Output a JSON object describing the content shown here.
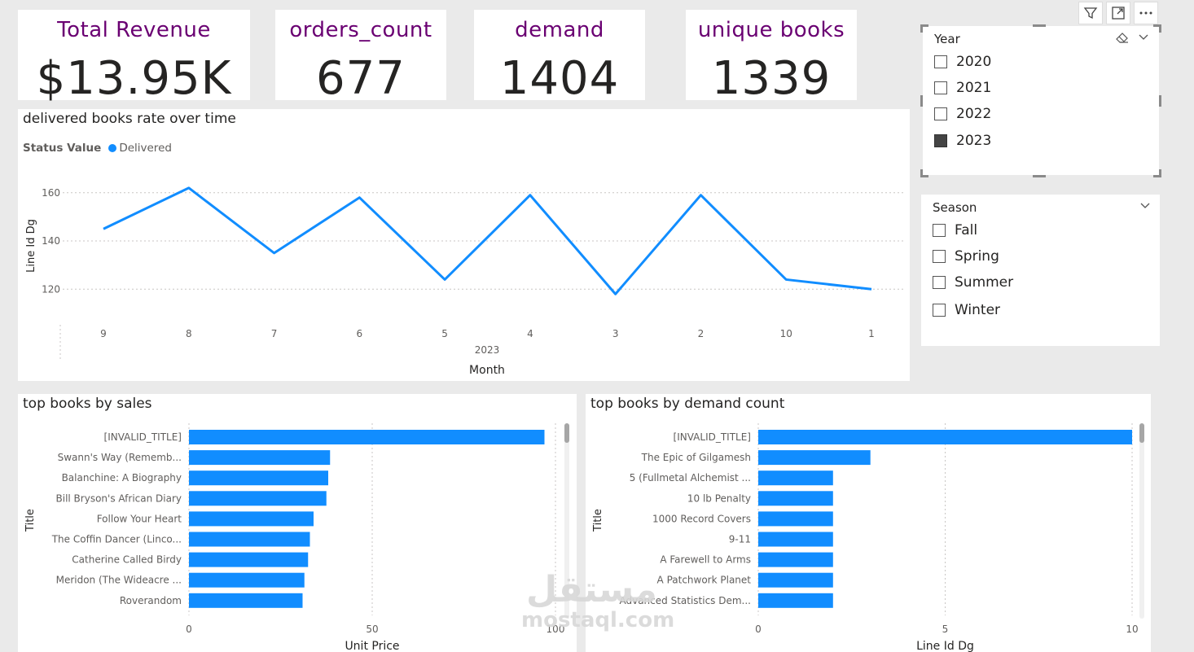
{
  "kpis": [
    {
      "title": "Total Revenue",
      "value": "$13.95K"
    },
    {
      "title": "orders_count",
      "value": "677"
    },
    {
      "title": "demand",
      "value": "1404"
    },
    {
      "title": "unique books",
      "value": "1339"
    }
  ],
  "year_slicer": {
    "title": "Year",
    "items": [
      {
        "label": "2020",
        "checked": false
      },
      {
        "label": "2021",
        "checked": false
      },
      {
        "label": "2022",
        "checked": false
      },
      {
        "label": "2023",
        "checked": true
      }
    ]
  },
  "season_slicer": {
    "title": "Season",
    "items": [
      {
        "label": "Fall",
        "checked": false
      },
      {
        "label": "Spring",
        "checked": false
      },
      {
        "label": "Summer",
        "checked": false
      },
      {
        "label": "Winter",
        "checked": false
      }
    ]
  },
  "toolbar": {
    "icons": [
      "filter-icon",
      "focus-mode-icon",
      "more-options-icon"
    ]
  },
  "watermark": {
    "logo": "مستقل",
    "text": "mostaql.com"
  },
  "chart_data": [
    {
      "type": "line",
      "title": "delivered books rate over time",
      "legend_title": "Status Value",
      "legend_position": "top-left",
      "series": [
        {
          "name": "Delivered",
          "color": "#118dff",
          "values": [
            145,
            162,
            135,
            158,
            124,
            159,
            118,
            159,
            124,
            120
          ]
        }
      ],
      "categories": [
        "9",
        "8",
        "7",
        "6",
        "5",
        "4",
        "3",
        "2",
        "10",
        "1"
      ],
      "x_group_label": "2023",
      "xlabel": "Month",
      "ylabel": "Line Id Dg",
      "yticks": [
        120,
        140,
        160
      ],
      "ylim": [
        112,
        166
      ],
      "grid": true
    },
    {
      "type": "bar",
      "orientation": "horizontal",
      "title": "top books by sales",
      "categories": [
        "[INVALID_TITLE]",
        "Swann's Way (Rememb...",
        "Balanchine: A Biography",
        "Bill Bryson's African Diary",
        "Follow Your Heart",
        "The Coffin Dancer (Linco...",
        "Catherine Called Birdy",
        "Meridon (The Wideacre ...",
        "Roverandom"
      ],
      "values": [
        97,
        38.5,
        38,
        37.5,
        34,
        33,
        32.5,
        31.5,
        31
      ],
      "color": "#118dff",
      "xlabel": "Unit Price",
      "ylabel": "Title",
      "xticks": [
        0,
        50,
        100
      ],
      "xlim": [
        0,
        100
      ],
      "grid": true
    },
    {
      "type": "bar",
      "orientation": "horizontal",
      "title": "top books by demand count",
      "categories": [
        "[INVALID_TITLE]",
        "The Epic of Gilgamesh",
        "5 (Fullmetal Alchemist ...",
        "10 lb Penalty",
        "1000 Record Covers",
        "9-11",
        "A Farewell to Arms",
        "A Patchwork Planet",
        "Advanced Statistics Dem..."
      ],
      "values": [
        10,
        3,
        2,
        2,
        2,
        2,
        2,
        2,
        2
      ],
      "color": "#118dff",
      "xlabel": "Line Id Dg",
      "ylabel": "Title",
      "xticks": [
        0,
        5,
        10
      ],
      "xlim": [
        0,
        10
      ],
      "grid": true
    }
  ]
}
